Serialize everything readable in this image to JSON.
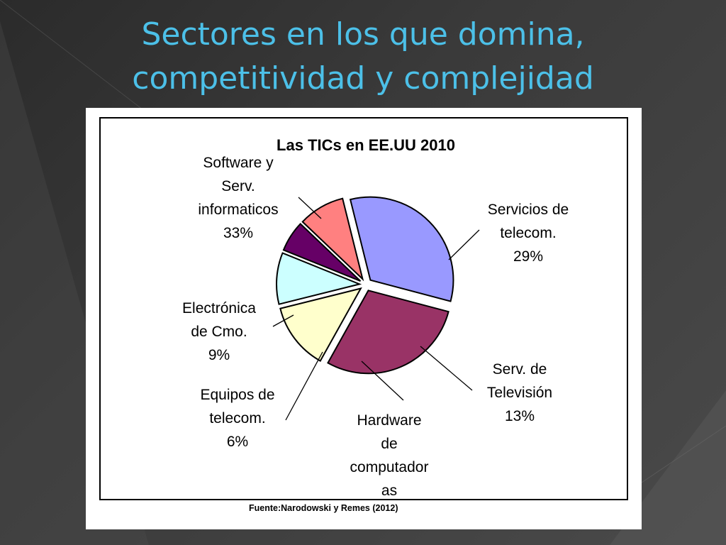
{
  "slide": {
    "title_lines": [
      "Sectores en los que domina,",
      "competitividad y complejidad"
    ]
  },
  "colors": {
    "title": "#4cc0e8",
    "background": "#333333"
  },
  "chart_data": {
    "type": "pie",
    "title": "Las TICs en EE.UU 2010",
    "source": "Fuente:Narodowski y Remes (2012)",
    "exploded": true,
    "slices": [
      {
        "label_lines": [
          "Software y",
          "Serv.",
          "informaticos",
          "33%"
        ],
        "value": 33,
        "color": "#9999ff"
      },
      {
        "label_lines": [
          "Servicios de",
          "telecom.",
          "29%"
        ],
        "value": 29,
        "color": "#993366"
      },
      {
        "label_lines": [
          "Serv. de",
          "Televisión",
          "13%"
        ],
        "value": 13,
        "color": "#ffffcc"
      },
      {
        "label_lines": [
          "Hardware",
          "de",
          "computador",
          "as"
        ],
        "value": null,
        "color": "#ccffff"
      },
      {
        "label_lines": [
          "Equipos de",
          "telecom.",
          "6%"
        ],
        "value": 6,
        "color": "#660066"
      },
      {
        "label_lines": [
          "Electrónica",
          "de Cmo.",
          "9%"
        ],
        "value": 9,
        "color": "#ff8080"
      }
    ]
  }
}
